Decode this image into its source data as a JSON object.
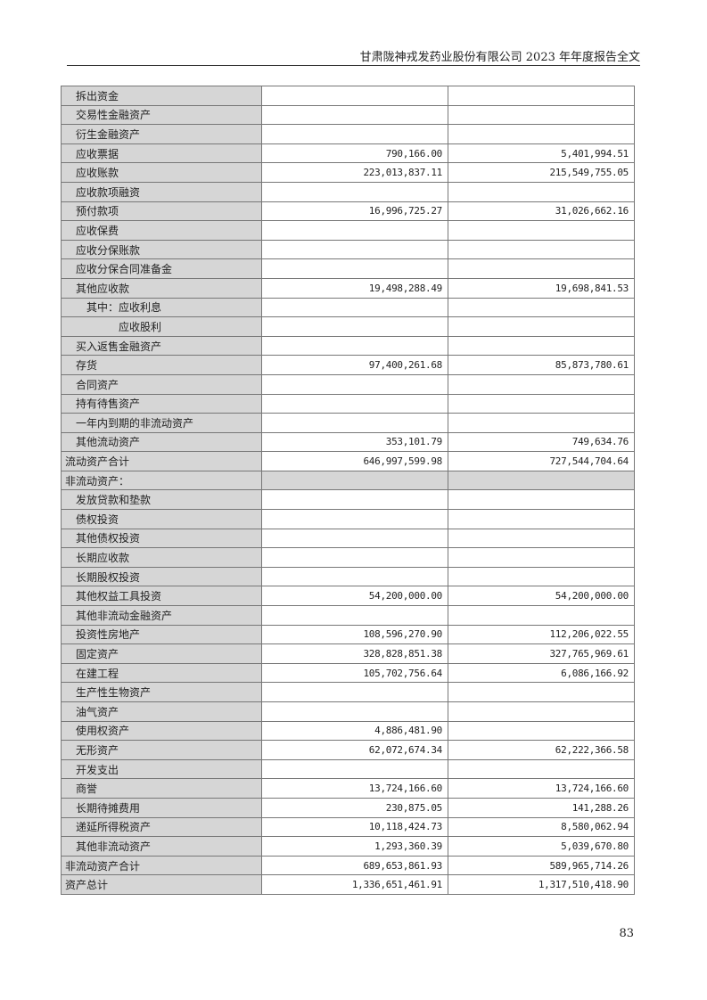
{
  "header": {
    "title": "甘肃陇神戎发药业股份有限公司 2023 年年度报告全文"
  },
  "rows": [
    {
      "label": "拆出资金",
      "indent": 1,
      "a": "",
      "b": ""
    },
    {
      "label": "交易性金融资产",
      "indent": 1,
      "a": "",
      "b": ""
    },
    {
      "label": "衍生金融资产",
      "indent": 1,
      "a": "",
      "b": ""
    },
    {
      "label": "应收票据",
      "indent": 1,
      "a": "790,166.00",
      "b": "5,401,994.51"
    },
    {
      "label": "应收账款",
      "indent": 1,
      "a": "223,013,837.11",
      "b": "215,549,755.05"
    },
    {
      "label": "应收款项融资",
      "indent": 1,
      "a": "",
      "b": ""
    },
    {
      "label": "预付款项",
      "indent": 1,
      "a": "16,996,725.27",
      "b": "31,026,662.16"
    },
    {
      "label": "应收保费",
      "indent": 1,
      "a": "",
      "b": ""
    },
    {
      "label": "应收分保账款",
      "indent": 1,
      "a": "",
      "b": ""
    },
    {
      "label": "应收分保合同准备金",
      "indent": 1,
      "a": "",
      "b": ""
    },
    {
      "label": "其他应收款",
      "indent": 1,
      "a": "19,498,288.49",
      "b": "19,698,841.53"
    },
    {
      "label": "其中：应收利息",
      "indent": 2,
      "a": "",
      "b": ""
    },
    {
      "label": "应收股利",
      "indent": 3,
      "a": "",
      "b": ""
    },
    {
      "label": "买入返售金融资产",
      "indent": 1,
      "a": "",
      "b": ""
    },
    {
      "label": "存货",
      "indent": 1,
      "a": "97,400,261.68",
      "b": "85,873,780.61"
    },
    {
      "label": "合同资产",
      "indent": 1,
      "a": "",
      "b": ""
    },
    {
      "label": "持有待售资产",
      "indent": 1,
      "a": "",
      "b": ""
    },
    {
      "label": "一年内到期的非流动资产",
      "indent": 1,
      "a": "",
      "b": ""
    },
    {
      "label": "其他流动资产",
      "indent": 1,
      "a": "353,101.79",
      "b": "749,634.76"
    },
    {
      "label": "流动资产合计",
      "indent": 0,
      "a": "646,997,599.98",
      "b": "727,544,704.64"
    },
    {
      "label": "非流动资产：",
      "indent": 0,
      "a": "",
      "b": "",
      "shaded": true
    },
    {
      "label": "发放贷款和垫款",
      "indent": 1,
      "a": "",
      "b": ""
    },
    {
      "label": "债权投资",
      "indent": 1,
      "a": "",
      "b": ""
    },
    {
      "label": "其他债权投资",
      "indent": 1,
      "a": "",
      "b": ""
    },
    {
      "label": "长期应收款",
      "indent": 1,
      "a": "",
      "b": ""
    },
    {
      "label": "长期股权投资",
      "indent": 1,
      "a": "",
      "b": ""
    },
    {
      "label": "其他权益工具投资",
      "indent": 1,
      "a": "54,200,000.00",
      "b": "54,200,000.00"
    },
    {
      "label": "其他非流动金融资产",
      "indent": 1,
      "a": "",
      "b": ""
    },
    {
      "label": "投资性房地产",
      "indent": 1,
      "a": "108,596,270.90",
      "b": "112,206,022.55"
    },
    {
      "label": "固定资产",
      "indent": 1,
      "a": "328,828,851.38",
      "b": "327,765,969.61"
    },
    {
      "label": "在建工程",
      "indent": 1,
      "a": "105,702,756.64",
      "b": "6,086,166.92"
    },
    {
      "label": "生产性生物资产",
      "indent": 1,
      "a": "",
      "b": ""
    },
    {
      "label": "油气资产",
      "indent": 1,
      "a": "",
      "b": ""
    },
    {
      "label": "使用权资产",
      "indent": 1,
      "a": "4,886,481.90",
      "b": ""
    },
    {
      "label": "无形资产",
      "indent": 1,
      "a": "62,072,674.34",
      "b": "62,222,366.58"
    },
    {
      "label": "开发支出",
      "indent": 1,
      "a": "",
      "b": ""
    },
    {
      "label": "商誉",
      "indent": 1,
      "a": "13,724,166.60",
      "b": "13,724,166.60"
    },
    {
      "label": "长期待摊费用",
      "indent": 1,
      "a": "230,875.05",
      "b": "141,288.26"
    },
    {
      "label": "递延所得税资产",
      "indent": 1,
      "a": "10,118,424.73",
      "b": "8,580,062.94"
    },
    {
      "label": "其他非流动资产",
      "indent": 1,
      "a": "1,293,360.39",
      "b": "5,039,670.80"
    },
    {
      "label": "非流动资产合计",
      "indent": 0,
      "a": "689,653,861.93",
      "b": "589,965,714.26"
    },
    {
      "label": "资产总计",
      "indent": 0,
      "a": "1,336,651,461.91",
      "b": "1,317,510,418.90"
    }
  ],
  "footer": {
    "page_number": "83"
  }
}
